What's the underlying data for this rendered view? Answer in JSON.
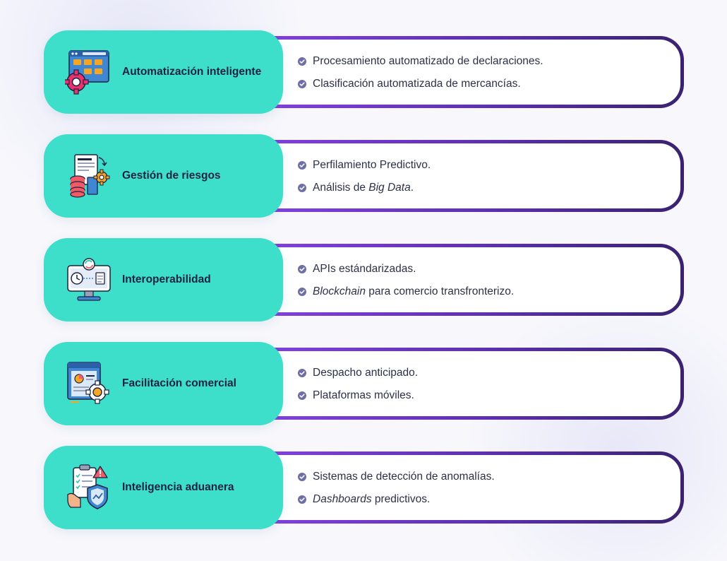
{
  "colors": {
    "pill": "#3ddfcb",
    "border_start": "#8340df",
    "border_end": "#3a2270",
    "title_text": "#1d2340",
    "bullet_text": "#2c3048",
    "check": "#6d6fa6"
  },
  "items": [
    {
      "icon": "browser-folders-gear-icon",
      "title": "Automatización inteligente",
      "bullets": [
        {
          "pre": "Procesamiento automatizado de declaraciones.",
          "em": "",
          "post": ""
        },
        {
          "pre": "Clasificación automatizada de mercancías.",
          "em": "",
          "post": ""
        }
      ]
    },
    {
      "icon": "document-database-gear-icon",
      "title": "Gestión de riesgos",
      "bullets": [
        {
          "pre": "Perfilamiento Predictivo.",
          "em": "",
          "post": ""
        },
        {
          "pre": "Análisis de ",
          "em": "Big Data",
          "post": "."
        }
      ]
    },
    {
      "icon": "monitor-sync-icon",
      "title": "Interoperabilidad",
      "bullets": [
        {
          "pre": "APIs estándarizadas.",
          "em": "",
          "post": ""
        },
        {
          "pre": "",
          "em": "Blockchain",
          "post": " para comercio transfronterizo."
        }
      ]
    },
    {
      "icon": "report-gear-icon",
      "title": "Facilitación comercial",
      "bullets": [
        {
          "pre": "Despacho anticipado.",
          "em": "",
          "post": ""
        },
        {
          "pre": "Plataformas móviles.",
          "em": "",
          "post": ""
        }
      ]
    },
    {
      "icon": "clipboard-alert-shield-icon",
      "title": "Inteligencia aduanera",
      "bullets": [
        {
          "pre": "Sistemas de detección de anomalías.",
          "em": "",
          "post": ""
        },
        {
          "pre": "",
          "em": "Dashboards",
          "post": " predictivos."
        }
      ]
    }
  ]
}
